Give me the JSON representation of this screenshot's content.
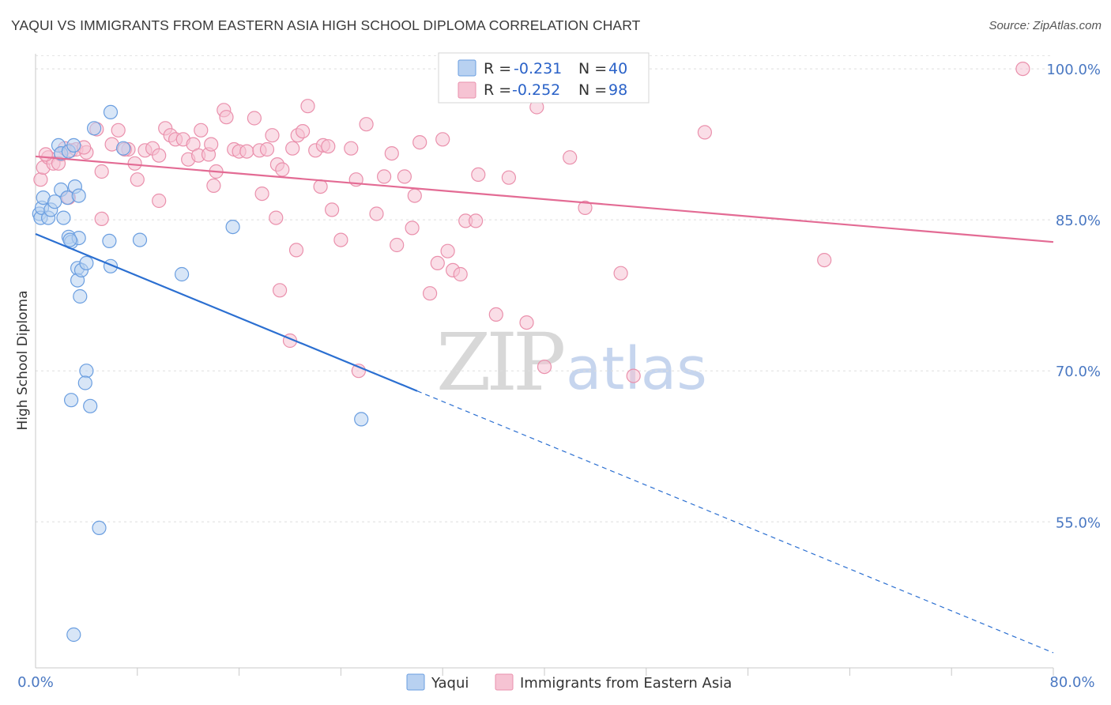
{
  "header": {
    "title": "YAQUI VS IMMIGRANTS FROM EASTERN ASIA HIGH SCHOOL DIPLOMA CORRELATION CHART",
    "source": "Source: ZipAtlas.com"
  },
  "watermark": {
    "zip": "ZIP",
    "atlas": "atlas"
  },
  "chart_data": {
    "type": "scatter",
    "title": "YAQUI VS IMMIGRANTS FROM EASTERN ASIA HIGH SCHOOL DIPLOMA CORRELATION CHART",
    "xlabel": "",
    "ylabel": "High School Diploma",
    "xlim": [
      0,
      80
    ],
    "ylim": [
      40.5,
      101.5
    ],
    "x_tick_labels": [
      "0.0%",
      "80.0%"
    ],
    "y_ticks": [
      {
        "value": 100,
        "label": "100.0%"
      },
      {
        "value": 85,
        "label": "85.0%"
      },
      {
        "value": 70,
        "label": "70.0%"
      },
      {
        "value": 55,
        "label": "55.0%"
      }
    ],
    "grid": true,
    "legend": {
      "placement": "top-center",
      "rows": [
        {
          "r_label": "R =",
          "r_value": "-0.231",
          "n_label": "N =",
          "n_value": "40"
        },
        {
          "r_label": "R =",
          "r_value": "-0.252",
          "n_label": "N =",
          "n_value": "98"
        }
      ]
    },
    "series": [
      {
        "name": "Yaqui",
        "color": "#6a9ee0",
        "fill": "#b8d1f1",
        "trend": {
          "x0": 0,
          "y0": 83.6,
          "x1": 30,
          "y1": 68.0,
          "dash_to_x": 80,
          "dash_to_y": 42.0
        },
        "points": [
          [
            0.3,
            85.6
          ],
          [
            0.4,
            85.2
          ],
          [
            0.5,
            86.2
          ],
          [
            0.6,
            87.2
          ],
          [
            1.0,
            85.2
          ],
          [
            1.2,
            86.0
          ],
          [
            1.5,
            86.8
          ],
          [
            1.8,
            92.4
          ],
          [
            2.0,
            91.6
          ],
          [
            2.6,
            91.8
          ],
          [
            3.0,
            92.4
          ],
          [
            2.0,
            88.0
          ],
          [
            2.5,
            87.2
          ],
          [
            3.1,
            88.3
          ],
          [
            3.4,
            87.4
          ],
          [
            2.2,
            85.2
          ],
          [
            2.6,
            83.3
          ],
          [
            2.8,
            82.8
          ],
          [
            3.4,
            83.2
          ],
          [
            2.7,
            83.0
          ],
          [
            3.3,
            80.2
          ],
          [
            3.3,
            79.0
          ],
          [
            3.5,
            77.4
          ],
          [
            3.6,
            80.0
          ],
          [
            4.0,
            80.7
          ],
          [
            4.6,
            94.1
          ],
          [
            5.9,
            95.7
          ],
          [
            6.9,
            92.1
          ],
          [
            5.8,
            82.9
          ],
          [
            5.9,
            80.4
          ],
          [
            8.2,
            83.0
          ],
          [
            11.5,
            79.6
          ],
          [
            15.5,
            84.3
          ],
          [
            4.0,
            70.0
          ],
          [
            3.9,
            68.8
          ],
          [
            2.8,
            67.1
          ],
          [
            4.3,
            66.5
          ],
          [
            25.6,
            65.2
          ],
          [
            5.0,
            54.4
          ],
          [
            3.0,
            43.8
          ]
        ]
      },
      {
        "name": "Immigrants from Eastern Asia",
        "color": "#ea90ac",
        "fill": "#f6c3d3",
        "trend": {
          "x0": 0,
          "y0": 91.3,
          "x1": 80,
          "y1": 82.8
        },
        "points": [
          [
            0.4,
            89.0
          ],
          [
            0.6,
            90.2
          ],
          [
            1.0,
            91.2
          ],
          [
            1.4,
            90.6
          ],
          [
            2.0,
            91.5
          ],
          [
            2.3,
            92.1
          ],
          [
            2.8,
            91.9
          ],
          [
            3.2,
            92.0
          ],
          [
            4.0,
            91.7
          ],
          [
            4.8,
            94.0
          ],
          [
            5.2,
            89.8
          ],
          [
            6.0,
            92.5
          ],
          [
            6.5,
            93.9
          ],
          [
            7.3,
            92.0
          ],
          [
            7.8,
            90.6
          ],
          [
            8.0,
            89.0
          ],
          [
            8.6,
            91.9
          ],
          [
            9.2,
            92.1
          ],
          [
            9.7,
            91.4
          ],
          [
            10.2,
            94.1
          ],
          [
            10.6,
            93.4
          ],
          [
            11.0,
            93.0
          ],
          [
            11.6,
            93.0
          ],
          [
            12.0,
            91.0
          ],
          [
            12.4,
            92.5
          ],
          [
            12.8,
            91.4
          ],
          [
            13.0,
            93.9
          ],
          [
            13.6,
            91.5
          ],
          [
            14.0,
            88.4
          ],
          [
            14.2,
            89.8
          ],
          [
            14.8,
            95.9
          ],
          [
            15.0,
            95.2
          ],
          [
            15.6,
            92.0
          ],
          [
            16.0,
            91.8
          ],
          [
            16.6,
            91.8
          ],
          [
            17.2,
            95.1
          ],
          [
            17.6,
            91.9
          ],
          [
            18.2,
            92.0
          ],
          [
            18.6,
            93.4
          ],
          [
            19.0,
            90.5
          ],
          [
            19.4,
            90.0
          ],
          [
            20.2,
            92.1
          ],
          [
            20.6,
            93.4
          ],
          [
            21.0,
            93.8
          ],
          [
            21.4,
            96.3
          ],
          [
            22.0,
            91.9
          ],
          [
            22.4,
            88.3
          ],
          [
            22.6,
            92.4
          ],
          [
            23.0,
            92.3
          ],
          [
            24.8,
            92.1
          ],
          [
            25.2,
            89.0
          ],
          [
            26.0,
            94.5
          ],
          [
            26.8,
            85.6
          ],
          [
            27.4,
            89.3
          ],
          [
            28.0,
            91.6
          ],
          [
            28.4,
            82.5
          ],
          [
            29.0,
            89.3
          ],
          [
            29.6,
            84.2
          ],
          [
            29.8,
            87.4
          ],
          [
            30.2,
            92.7
          ],
          [
            31.0,
            77.7
          ],
          [
            31.6,
            80.7
          ],
          [
            32.0,
            93.0
          ],
          [
            32.4,
            81.9
          ],
          [
            32.8,
            80.0
          ],
          [
            33.4,
            79.6
          ],
          [
            33.8,
            84.9
          ],
          [
            34.6,
            84.9
          ],
          [
            34.8,
            89.5
          ],
          [
            36.2,
            75.6
          ],
          [
            37.2,
            89.2
          ],
          [
            38.0,
            100.0
          ],
          [
            38.6,
            74.8
          ],
          [
            39.4,
            96.2
          ],
          [
            40.0,
            70.4
          ],
          [
            42.0,
            91.2
          ],
          [
            43.2,
            86.2
          ],
          [
            46.0,
            79.7
          ],
          [
            47.0,
            69.5
          ],
          [
            52.6,
            93.7
          ],
          [
            62.0,
            81.0
          ],
          [
            77.6,
            100.0
          ],
          [
            2.6,
            87.2
          ],
          [
            3.8,
            92.2
          ],
          [
            5.2,
            85.1
          ],
          [
            7.0,
            92.0
          ],
          [
            9.7,
            86.9
          ],
          [
            13.8,
            92.5
          ],
          [
            17.8,
            87.6
          ],
          [
            18.9,
            85.2
          ],
          [
            20.5,
            82.0
          ],
          [
            23.3,
            86.0
          ],
          [
            24.0,
            83.0
          ],
          [
            19.2,
            78.0
          ],
          [
            20.0,
            73.0
          ],
          [
            25.4,
            70.0
          ],
          [
            1.8,
            90.6
          ],
          [
            0.8,
            91.5
          ]
        ]
      }
    ]
  },
  "bottom_legend": [
    {
      "label": "Yaqui"
    },
    {
      "label": "Immigrants from Eastern Asia"
    }
  ]
}
